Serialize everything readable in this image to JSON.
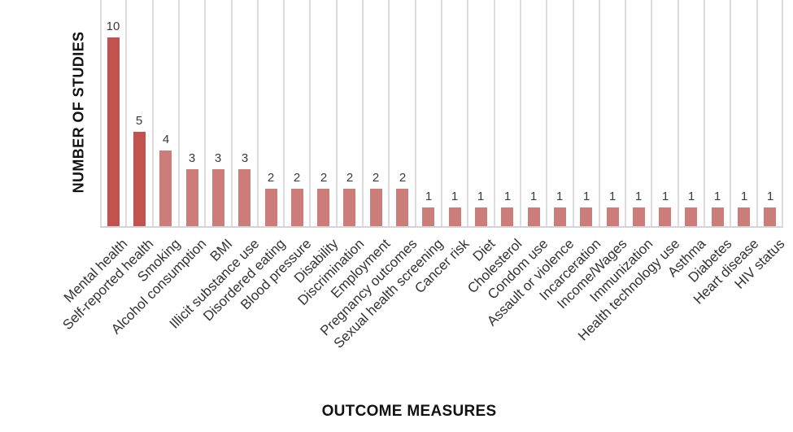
{
  "chart_data": {
    "type": "bar",
    "title": "",
    "xlabel": "OUTCOME MEASURES",
    "ylabel": "NUMBER OF STUDIES",
    "categories": [
      "Mental health",
      "Self-reported health",
      "Smoking",
      "Alcohol consumption",
      "BMI",
      "Illicit substance use",
      "Disordered eating",
      "Blood pressure",
      "Disability",
      "Discrimination",
      "Employment",
      "Pregnancy outcomes",
      "Sexual health screening",
      "Cancer risk",
      "Diet",
      "Cholesterol",
      "Condom use",
      "Assault or violence",
      "Incarceration",
      "Income/Wages",
      "Immunization",
      "Health technology use",
      "Asthma",
      "Diabetes",
      "Heart disease",
      "HIV status"
    ],
    "values": [
      10,
      5,
      4,
      3,
      3,
      3,
      2,
      2,
      2,
      2,
      2,
      2,
      1,
      1,
      1,
      1,
      1,
      1,
      1,
      1,
      1,
      1,
      1,
      1,
      1,
      1
    ],
    "bar_colors": [
      "#c0534f",
      "#c0534f",
      "#cd7d79",
      "#cd7d79",
      "#cd7d79",
      "#cd7d79",
      "#cd7d79",
      "#cd7d79",
      "#cd7d79",
      "#cd7d79",
      "#cd7d79",
      "#cd7d79",
      "#cd7d79",
      "#cd7d79",
      "#cd7d79",
      "#cd7d79",
      "#cd7d79",
      "#cd7d79",
      "#cd7d79",
      "#cd7d79",
      "#cd7d79",
      "#cd7d79",
      "#cd7d79",
      "#cd7d79",
      "#cd7d79",
      "#cd7d79"
    ],
    "colors": {
      "bar_dark": "#c0534f",
      "bar_light": "#cd7d79",
      "gridline": "#dcdcdc",
      "axis_line": "#d4d4d4",
      "label_text": "#3a3a3a",
      "title_text": "#111111",
      "background": "#ffffff"
    },
    "ylim": [
      0,
      12
    ],
    "grid": "vertical category separators",
    "legend": "none",
    "data_labels": true
  }
}
